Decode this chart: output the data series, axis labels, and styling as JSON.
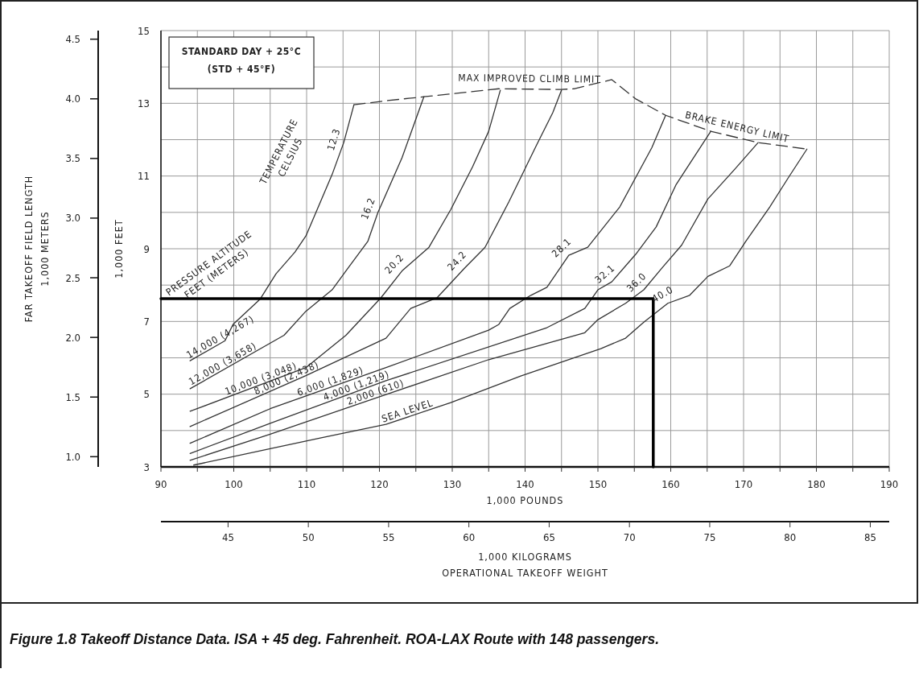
{
  "chart_data": {
    "type": "line",
    "xlabel": "1,000 POUNDS",
    "ylabel": "1,000 FEET",
    "y2label": "FAR TAKEOFF FIELD LENGTH\n1,000 METERS",
    "x2label": "1,000 KILOGRAMS\nOPERATIONAL TAKEOFF WEIGHT",
    "xlim": [
      90,
      190
    ],
    "xticks": [
      90,
      {
        "value": 95,
        "label": null
      },
      100,
      {
        "value": 105,
        "label": null
      },
      110,
      {
        "value": 115,
        "label": null
      },
      120,
      {
        "value": 125,
        "label": null
      },
      130,
      {
        "value": 135,
        "label": null
      },
      140,
      {
        "value": 145,
        "label": null
      },
      150,
      {
        "value": 155,
        "label": null
      },
      160,
      {
        "value": 165,
        "label": null
      },
      170,
      {
        "value": 175,
        "label": null
      },
      180,
      {
        "value": 185,
        "label": null
      },
      190
    ],
    "ylim": [
      3,
      15
    ],
    "yticks": [
      3,
      {
        "value": 4,
        "label": null
      },
      5,
      {
        "value": 6,
        "label": null
      },
      7,
      {
        "value": 8,
        "label": null
      },
      9,
      {
        "value": 10,
        "label": null
      },
      11,
      {
        "value": 12,
        "label": null
      },
      13,
      {
        "value": 14,
        "label": null
      },
      15
    ],
    "y2lim": [
      0.9144,
      4.572
    ],
    "y2ticks": [
      {
        "value": 1,
        "label": "1.0"
      },
      1.5,
      {
        "value": 2,
        "label": "2.0"
      },
      2.5,
      {
        "value": 3,
        "label": "3.0"
      },
      3.5,
      {
        "value": 4,
        "label": "4.0"
      },
      4.5
    ],
    "x2lim": [
      40.82,
      86.18
    ],
    "x2ticks": [
      45,
      50,
      55,
      60,
      65,
      70,
      75,
      80,
      85
    ],
    "grid": true,
    "series": [
      {
        "name": "SEA LEVEL",
        "color": "#333333",
        "x": [
          94.5,
          105,
          112,
          120.9,
          129.8,
          139.4,
          150.4,
          153.8,
          156.3,
          159.6,
          162.6,
          165.1,
          168.1,
          170.3,
          173.6,
          176.2,
          178.7
        ],
        "values": [
          3.05,
          3.5,
          3.8,
          4.17,
          4.77,
          5.5,
          6.25,
          6.54,
          6.98,
          7.5,
          7.72,
          8.24,
          8.53,
          9.2,
          10.15,
          10.97,
          11.74
        ]
      },
      {
        "name": "2,000 (610)",
        "color": "#333333",
        "x": [
          94,
          105,
          120.9,
          135,
          148.2,
          150,
          153.8,
          156.3,
          158.8,
          161.5,
          165.1,
          168.8,
          172
        ],
        "values": [
          3.18,
          3.9,
          4.99,
          5.95,
          6.69,
          7.05,
          7.5,
          7.87,
          8.47,
          9.1,
          10.37,
          11.19,
          11.92
        ]
      },
      {
        "name": "4,000 (1,219)",
        "color": "#333333",
        "x": [
          94,
          105,
          120.9,
          143,
          148.2,
          150,
          151.9,
          155.2,
          158,
          160.7,
          162.6,
          165.5
        ],
        "values": [
          3.37,
          4.2,
          5.37,
          6.83,
          7.36,
          7.87,
          8.09,
          8.85,
          9.6,
          10.75,
          11.34,
          12.23
        ]
      },
      {
        "name": "6,000 (1,829)",
        "color": "#333333",
        "x": [
          94,
          105,
          120.9,
          135,
          136.4,
          137.9,
          140.8,
          143,
          146,
          148.6,
          153,
          157.4,
          159.3
        ],
        "values": [
          3.65,
          4.6,
          5.73,
          6.76,
          6.92,
          7.36,
          7.72,
          7.94,
          8.82,
          9.04,
          10.15,
          11.78,
          12.67
        ]
      },
      {
        "name": "8,000 (2,438)",
        "color": "#333333",
        "x": [
          94,
          109.9,
          120.9,
          124.3,
          127.9,
          131.7,
          134.5,
          137.8,
          141.6,
          143.8,
          145
        ],
        "values": [
          4.11,
          5.51,
          6.54,
          7.36,
          7.65,
          8.47,
          9.04,
          10.3,
          11.86,
          12.74,
          13.36
        ]
      },
      {
        "name": "10,000 (3,048)",
        "color": "#333333",
        "x": [
          94,
          109.9,
          115.4,
          120.2,
          123.1,
          126.8,
          129.8,
          132.8,
          135,
          136.6
        ],
        "values": [
          4.53,
          5.73,
          6.62,
          7.65,
          8.39,
          9.04,
          10.08,
          11.26,
          12.23,
          13.36
        ]
      },
      {
        "name": "12,000 (3,658)",
        "color": "#333333",
        "x": [
          94,
          106.9,
          109.9,
          113.5,
          115.7,
          118.4,
          119.8,
          123.1,
          126.1
        ],
        "values": [
          5.15,
          6.62,
          7.28,
          7.87,
          8.47,
          9.2,
          10.0,
          11.5,
          13.18
        ]
      },
      {
        "name": "14,000 (4,267)",
        "color": "#333333",
        "x": [
          94,
          98.8,
          99.9,
          103.6,
          105.8,
          108.4,
          109.9,
          113.5,
          115.1,
          116.5
        ],
        "values": [
          5.92,
          6.47,
          6.92,
          7.61,
          8.31,
          8.91,
          9.35,
          11.04,
          11.92,
          12.96
        ]
      },
      {
        "color": "#333333",
        "line_style": "dashed",
        "x": [
          116.5,
          120.9,
          126.1,
          136.4,
          144.9,
          146.7,
          151.9,
          155.2,
          159.3,
          165.5,
          172,
          178.7
        ],
        "values": [
          12.96,
          13.07,
          13.18,
          13.4,
          13.38,
          13.4,
          13.65,
          13.12,
          12.67,
          12.23,
          11.92,
          11.74
        ]
      },
      {
        "color": "#000000",
        "x": [
          90,
          157.6,
          157.6
        ],
        "values": [
          7.63,
          7.63,
          3
        ]
      }
    ],
    "annotations": [
      "STANDARD DAY + 25°C\n(STD + 45°F)",
      "PRESSURE ALTITUDE\nFEET (METERS)",
      "TEMPERATURE\nCELSIUS",
      {
        "text": "12.3",
        "x": 115.1,
        "y": 11.92
      },
      {
        "text": "16.2",
        "x": 119.8,
        "y": 10.0
      },
      {
        "text": "20.2",
        "x": 123.1,
        "y": 8.39
      },
      {
        "text": "24.2",
        "x": 131.7,
        "y": 8.47
      },
      {
        "text": "28.1",
        "x": 146,
        "y": 8.82
      },
      {
        "text": "32.1",
        "x": 151.9,
        "y": 8.09
      },
      {
        "text": "36.0",
        "x": 156.3,
        "y": 7.87
      },
      {
        "text": "40.0",
        "x": 159.6,
        "y": 7.5
      },
      {
        "text": "MAX IMPROVED CLIMB LIMIT",
        "x": 140.6,
        "y": 13.39
      },
      {
        "text": "BRAKE ENERGY LIMIT",
        "x": 168.8,
        "y": 12.07
      },
      "Figure 1.8 Takeoff Distance Data. ISA + 45 deg. Fahrenheit. ROA-LAX Route with 148 passengers."
    ]
  }
}
